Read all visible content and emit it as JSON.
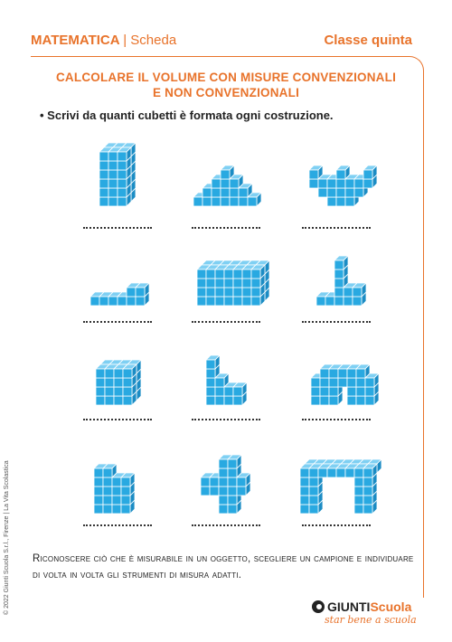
{
  "header": {
    "subject": "MATEMATICA",
    "separator": "|",
    "type": "Scheda",
    "class": "Classe quinta"
  },
  "title": {
    "line1": "CALCOLARE IL VOLUME CON MISURE CONVENZIONALI",
    "line2": "E NON CONVENZIONALI"
  },
  "instruction": "• Scrivi da quanti cubetti è formata ogni costruzione.",
  "answer_placeholder": "",
  "bottom_text": "Riconoscere ciò che è misurabile in un oggetto, scegliere un campione e individuare di volta in volta gli strumenti di misura adatti.",
  "copyright": "© 2022 Giunti Scuola S.r.l., Firenze | La Vita Scolastica",
  "logo": {
    "name_part1": "GIUNTI",
    "name_part2": "Scuola",
    "tagline": "star bene a scuola"
  },
  "colors": {
    "accent": "#e8732b",
    "cube_front": "#29a9e1",
    "cube_top": "#7fd0f3",
    "cube_side": "#1b8cc4",
    "cube_edge": "#ffffff"
  }
}
